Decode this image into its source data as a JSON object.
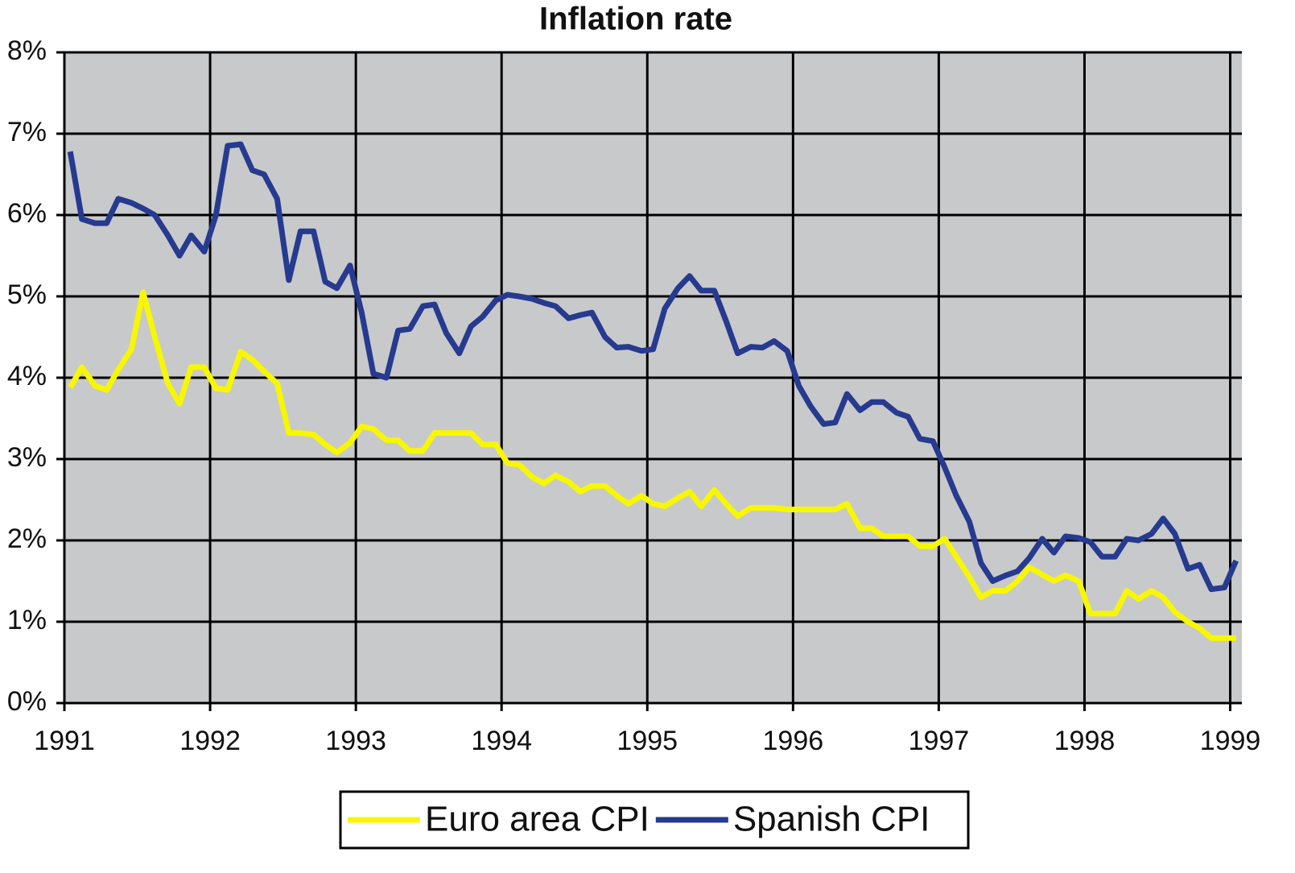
{
  "chart_data": {
    "type": "line",
    "title": "Inflation rate",
    "x": [
      1991.04,
      1991.12,
      1991.21,
      1991.29,
      1991.37,
      1991.46,
      1991.54,
      1991.62,
      1991.71,
      1991.79,
      1991.87,
      1991.96,
      1992.04,
      1992.12,
      1992.21,
      1992.29,
      1992.37,
      1992.46,
      1992.54,
      1992.62,
      1992.71,
      1992.79,
      1992.87,
      1992.96,
      1993.04,
      1993.12,
      1993.21,
      1993.29,
      1993.37,
      1993.46,
      1993.54,
      1993.62,
      1993.71,
      1993.79,
      1993.87,
      1993.96,
      1994.04,
      1994.12,
      1994.21,
      1994.29,
      1994.37,
      1994.46,
      1994.54,
      1994.62,
      1994.71,
      1994.79,
      1994.87,
      1994.96,
      1995.04,
      1995.12,
      1995.21,
      1995.29,
      1995.37,
      1995.46,
      1995.54,
      1995.62,
      1995.71,
      1995.79,
      1995.87,
      1995.96,
      1996.04,
      1996.12,
      1996.21,
      1996.29,
      1996.37,
      1996.46,
      1996.54,
      1996.62,
      1996.71,
      1996.79,
      1996.87,
      1996.96,
      1997.04,
      1997.12,
      1997.21,
      1997.29,
      1997.37,
      1997.46,
      1997.54,
      1997.62,
      1997.71,
      1997.79,
      1997.87,
      1997.96,
      1998.04,
      1998.12,
      1998.21,
      1998.29,
      1998.37,
      1998.46,
      1998.54,
      1998.62,
      1998.71,
      1998.79,
      1998.87,
      1998.96,
      1999.04
    ],
    "series": [
      {
        "name": "Euro area CPI",
        "color": "#f7f700",
        "values": [
          3.88,
          4.13,
          3.9,
          3.85,
          4.1,
          4.35,
          5.05,
          4.5,
          3.93,
          3.68,
          4.13,
          4.13,
          3.87,
          3.85,
          4.32,
          4.22,
          4.08,
          3.93,
          3.32,
          3.32,
          3.3,
          3.18,
          3.08,
          3.2,
          3.4,
          3.37,
          3.23,
          3.23,
          3.1,
          3.1,
          3.32,
          3.32,
          3.32,
          3.32,
          3.18,
          3.18,
          2.95,
          2.93,
          2.78,
          2.7,
          2.8,
          2.72,
          2.6,
          2.67,
          2.67,
          2.55,
          2.45,
          2.55,
          2.45,
          2.42,
          2.52,
          2.6,
          2.42,
          2.62,
          2.45,
          2.3,
          2.4,
          2.4,
          2.4,
          2.38,
          2.38,
          2.38,
          2.38,
          2.38,
          2.45,
          2.15,
          2.15,
          2.05,
          2.05,
          2.05,
          1.93,
          1.93,
          2.02,
          1.8,
          1.55,
          1.3,
          1.38,
          1.38,
          1.5,
          1.67,
          1.58,
          1.5,
          1.57,
          1.5,
          1.1,
          1.1,
          1.1,
          1.38,
          1.28,
          1.38,
          1.3,
          1.12,
          1.0,
          0.92,
          0.8,
          0.8,
          0.8
        ]
      },
      {
        "name": "Spanish CPI",
        "color": "#263a8f",
        "values": [
          6.78,
          5.95,
          5.9,
          5.9,
          6.2,
          6.15,
          6.08,
          6.0,
          5.75,
          5.5,
          5.75,
          5.55,
          6.0,
          6.85,
          6.87,
          6.55,
          6.5,
          6.2,
          5.2,
          5.8,
          5.8,
          5.18,
          5.1,
          5.38,
          4.8,
          4.05,
          4.0,
          4.58,
          4.6,
          4.88,
          4.9,
          4.55,
          4.3,
          4.63,
          4.75,
          4.95,
          5.02,
          5.0,
          4.97,
          4.92,
          4.88,
          4.73,
          4.77,
          4.8,
          4.5,
          4.37,
          4.38,
          4.33,
          4.35,
          4.85,
          5.1,
          5.25,
          5.07,
          5.07,
          4.7,
          4.3,
          4.38,
          4.37,
          4.45,
          4.33,
          3.9,
          3.65,
          3.43,
          3.45,
          3.8,
          3.6,
          3.7,
          3.7,
          3.57,
          3.52,
          3.25,
          3.22,
          2.9,
          2.55,
          2.23,
          1.72,
          1.5,
          1.57,
          1.62,
          1.78,
          2.02,
          1.85,
          2.05,
          2.03,
          1.98,
          1.8,
          1.8,
          2.02,
          2.0,
          2.08,
          2.27,
          2.08,
          1.65,
          1.7,
          1.4,
          1.42,
          1.75
        ]
      }
    ],
    "xlim": [
      1991,
      1999.08
    ],
    "xticks": [
      1991,
      1992,
      1993,
      1994,
      1995,
      1996,
      1997,
      1998,
      1999
    ],
    "ylim": [
      0,
      8
    ],
    "yticks": [
      {
        "value": 0,
        "label": "0%"
      },
      {
        "value": 1,
        "label": "1%"
      },
      {
        "value": 2,
        "label": "2%"
      },
      {
        "value": 3,
        "label": "3%"
      },
      {
        "value": 4,
        "label": "4%"
      },
      {
        "value": 5,
        "label": "5%"
      },
      {
        "value": 6,
        "label": "6%"
      },
      {
        "value": 7,
        "label": "7%"
      },
      {
        "value": 8,
        "label": "8%"
      }
    ],
    "grid": true,
    "legend": "bottom",
    "background": "#c8c9cb"
  }
}
